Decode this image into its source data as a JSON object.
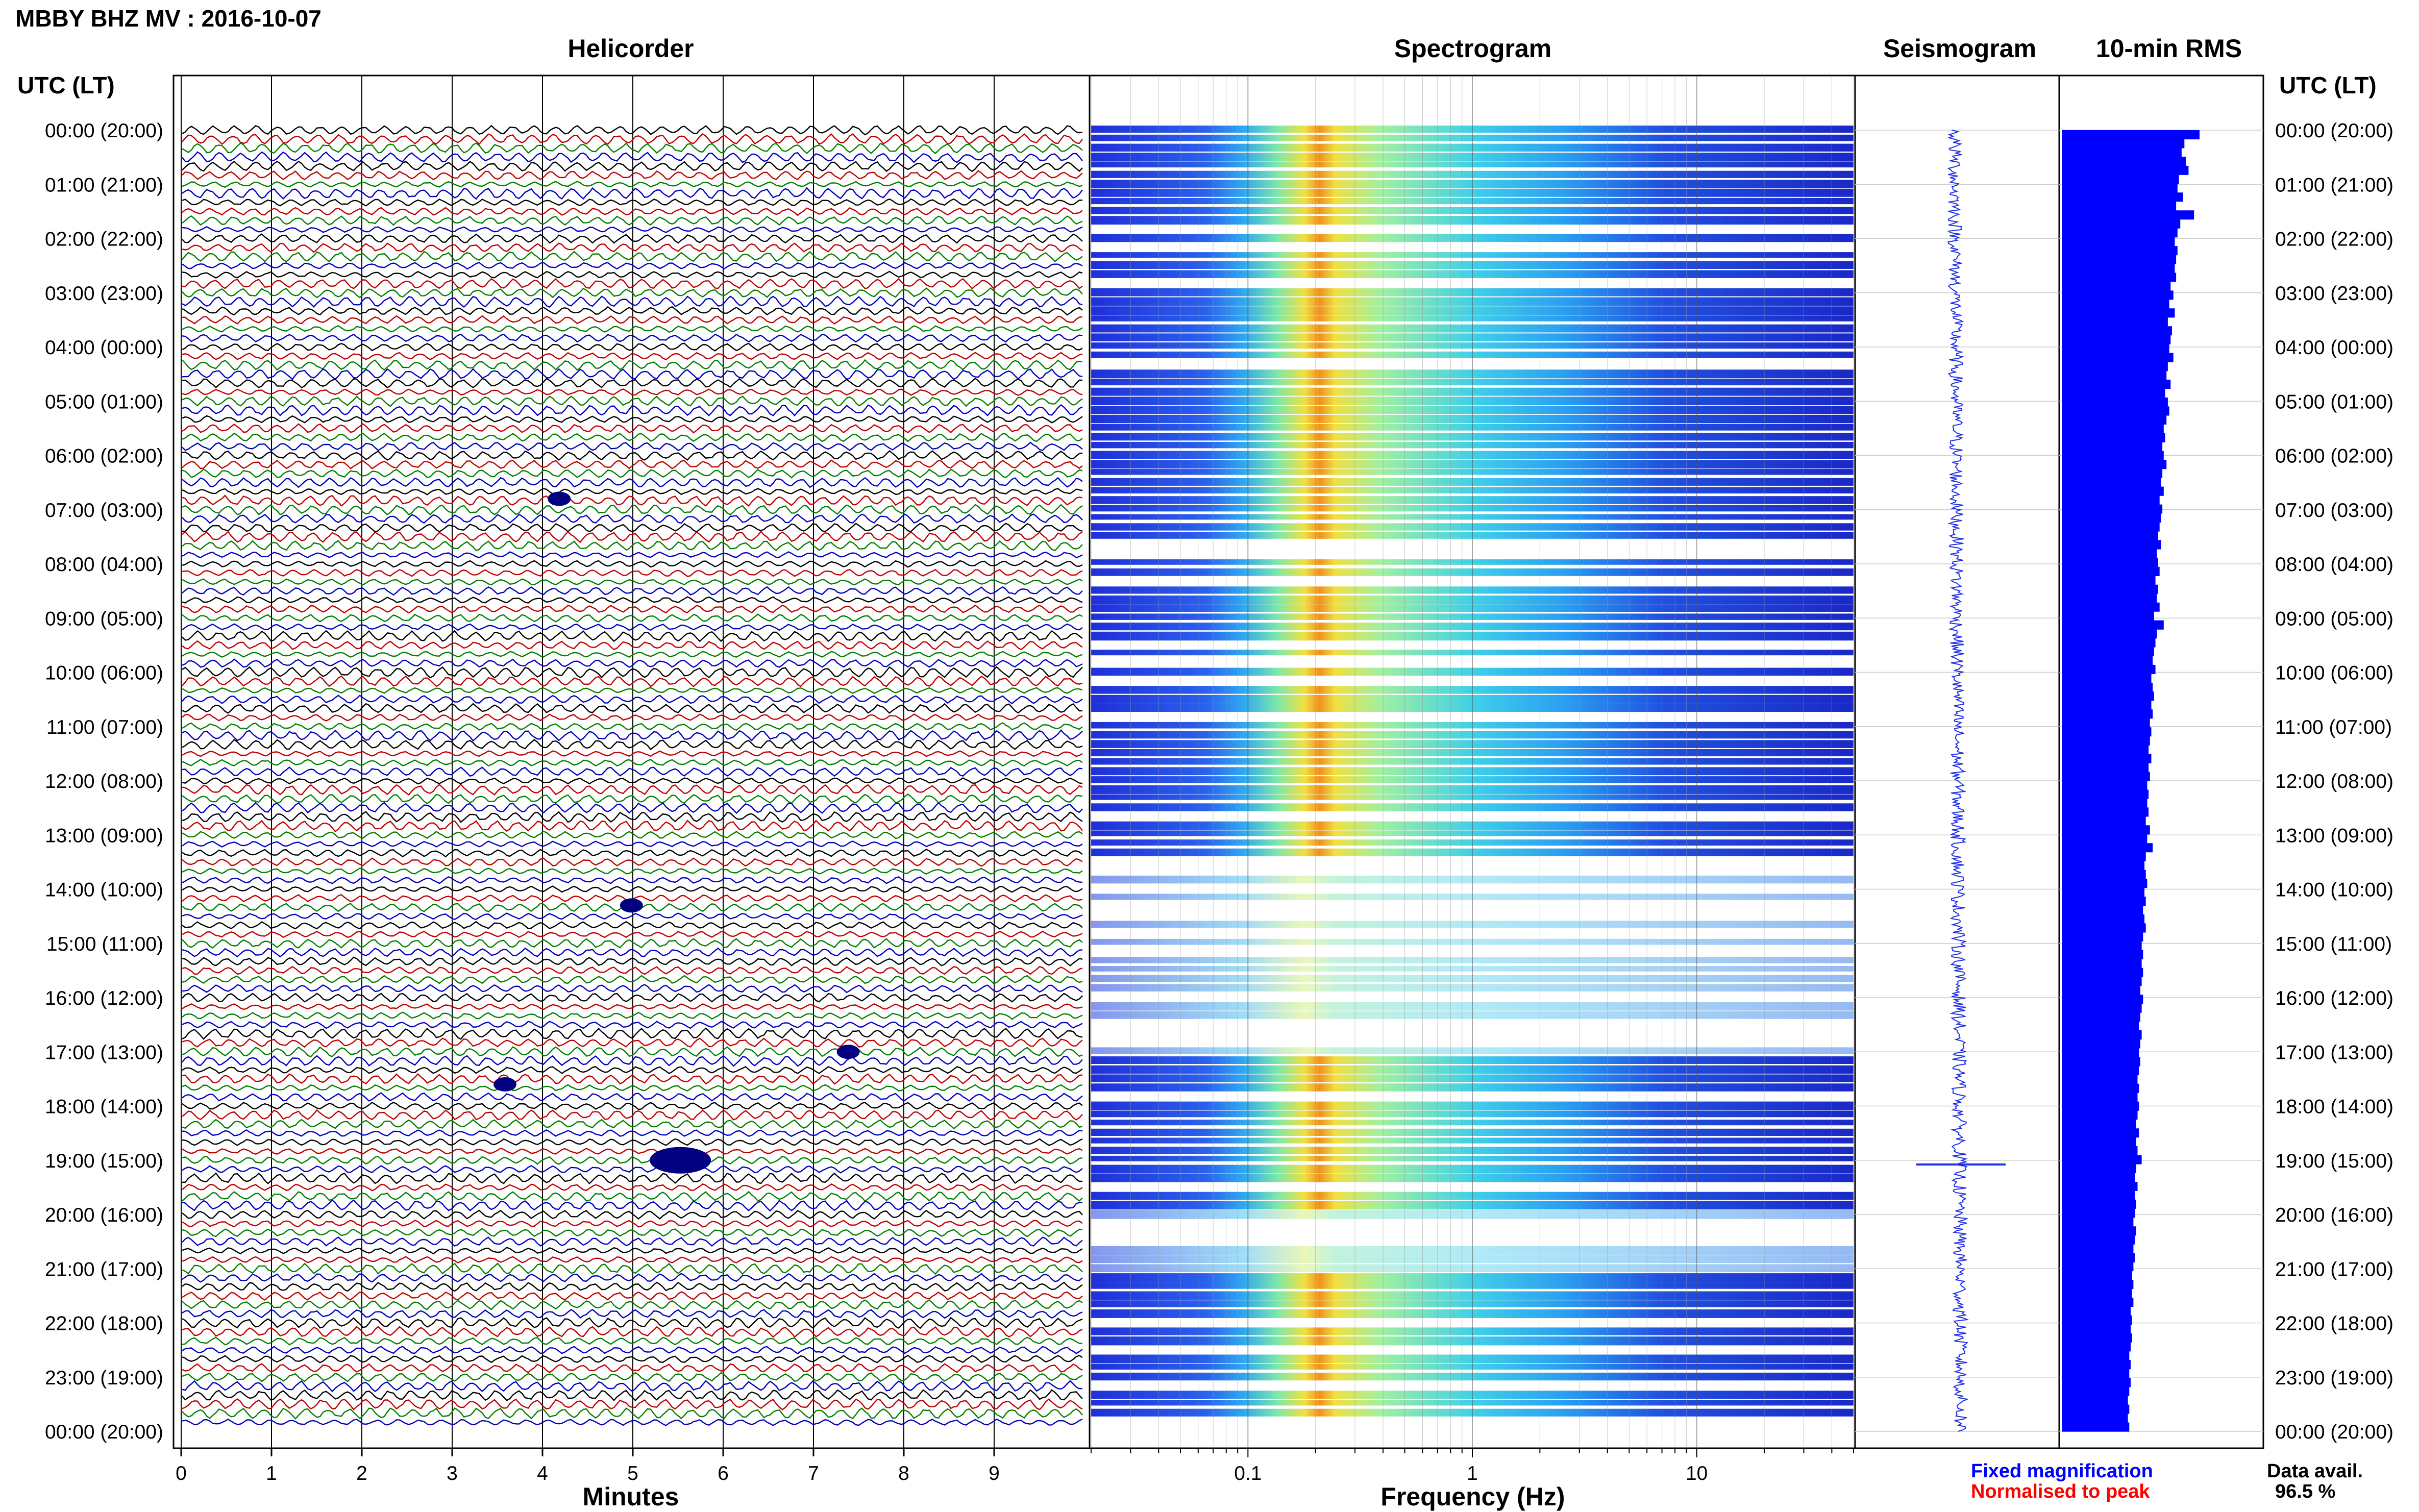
{
  "header": {
    "title": "MBBY BHZ MV : 2016-10-07",
    "utc_label_left": "UTC (LT)",
    "utc_label_right": "UTC (LT)"
  },
  "panels": {
    "helicorder": "Helicorder",
    "spectrogram": "Spectrogram",
    "seismogram": "Seismogram",
    "rms": "10-min RMS"
  },
  "axes": {
    "minutes_label": "Minutes",
    "frequency_label": "Frequency (Hz)"
  },
  "legend": {
    "fixed": "Fixed magnification",
    "normalised": "Normalised to peak",
    "fixed_color": "#0000ff",
    "normalised_color": "#ff0000"
  },
  "availability": {
    "label": "Data avail.",
    "value": "96.5 %"
  },
  "chart_data": {
    "type": "heatmap",
    "title": "MBBY BHZ MV : 2016-10-07",
    "time_labels": [
      "00:00 (20:00)",
      "01:00 (21:00)",
      "02:00 (22:00)",
      "03:00 (23:00)",
      "04:00 (00:00)",
      "05:00 (01:00)",
      "06:00 (02:00)",
      "07:00 (03:00)",
      "08:00 (04:00)",
      "09:00 (05:00)",
      "10:00 (06:00)",
      "11:00 (07:00)",
      "12:00 (08:00)",
      "13:00 (09:00)",
      "14:00 (10:00)",
      "15:00 (11:00)",
      "16:00 (12:00)",
      "17:00 (13:00)",
      "18:00 (14:00)",
      "19:00 (15:00)",
      "20:00 (16:00)",
      "21:00 (17:00)",
      "22:00 (18:00)",
      "23:00 (19:00)",
      "00:00 (20:00)"
    ],
    "minute_ticks": [
      "0",
      "1",
      "2",
      "3",
      "4",
      "5",
      "6",
      "7",
      "8",
      "9"
    ],
    "xlim_minutes": [
      0,
      10
    ],
    "frequency_ticks": [
      "0.1",
      "1",
      "10"
    ],
    "frequency_range_hz": [
      0.02,
      50
    ],
    "frequency_scale": "log",
    "helicorder_trace_colors": [
      "#000000",
      "#c00000",
      "#008000",
      "#0000c0"
    ],
    "spectrogram_peak_hz": 0.25,
    "events": [
      {
        "time_hours": 6.8,
        "minute": 4.1
      },
      {
        "time_hours": 14.3,
        "minute": 4.9
      },
      {
        "time_hours": 17.0,
        "minute": 7.3
      },
      {
        "time_hours": 17.6,
        "minute": 3.5
      },
      {
        "time_hours": 19.0,
        "minute": 5.3
      }
    ],
    "rms_color": "#0000ff",
    "rms_bins": [
      1.0,
      0.89,
      0.87,
      0.9,
      0.92,
      0.85,
      0.84,
      0.88,
      0.83,
      0.96,
      0.86,
      0.84,
      0.82,
      0.84,
      0.83,
      0.82,
      0.83,
      0.79,
      0.81,
      0.78,
      0.82,
      0.77,
      0.8,
      0.79,
      0.78,
      0.81,
      0.77,
      0.76,
      0.79,
      0.75,
      0.77,
      0.78,
      0.76,
      0.74,
      0.75,
      0.73,
      0.74,
      0.76,
      0.73,
      0.72,
      0.74,
      0.71,
      0.73,
      0.72,
      0.71,
      0.7,
      0.72,
      0.69,
      0.7,
      0.71,
      0.68,
      0.7,
      0.69,
      0.71,
      0.67,
      0.74,
      0.69,
      0.68,
      0.67,
      0.66,
      0.68,
      0.65,
      0.66,
      0.67,
      0.65,
      0.66,
      0.64,
      0.65,
      0.64,
      0.63,
      0.65,
      0.63,
      0.64,
      0.62,
      0.63,
      0.62,
      0.63,
      0.61,
      0.64,
      0.62,
      0.66,
      0.61,
      0.6,
      0.61,
      0.62,
      0.6,
      0.61,
      0.59,
      0.6,
      0.61,
      0.59,
      0.58,
      0.59,
      0.58,
      0.59,
      0.58,
      0.57,
      0.59,
      0.58,
      0.57,
      0.56,
      0.58,
      0.57,
      0.56,
      0.57,
      0.56,
      0.55,
      0.56,
      0.55,
      0.56,
      0.55,
      0.54,
      0.56,
      0.54,
      0.55,
      0.58,
      0.54,
      0.53,
      0.55,
      0.53,
      0.54,
      0.53,
      0.52,
      0.54,
      0.53,
      0.52,
      0.53,
      0.52,
      0.51,
      0.52,
      0.51,
      0.52,
      0.5,
      0.51,
      0.5,
      0.51,
      0.5,
      0.49,
      0.5,
      0.49,
      0.5,
      0.49,
      0.48,
      0.49,
      0.48,
      0.49
    ]
  }
}
